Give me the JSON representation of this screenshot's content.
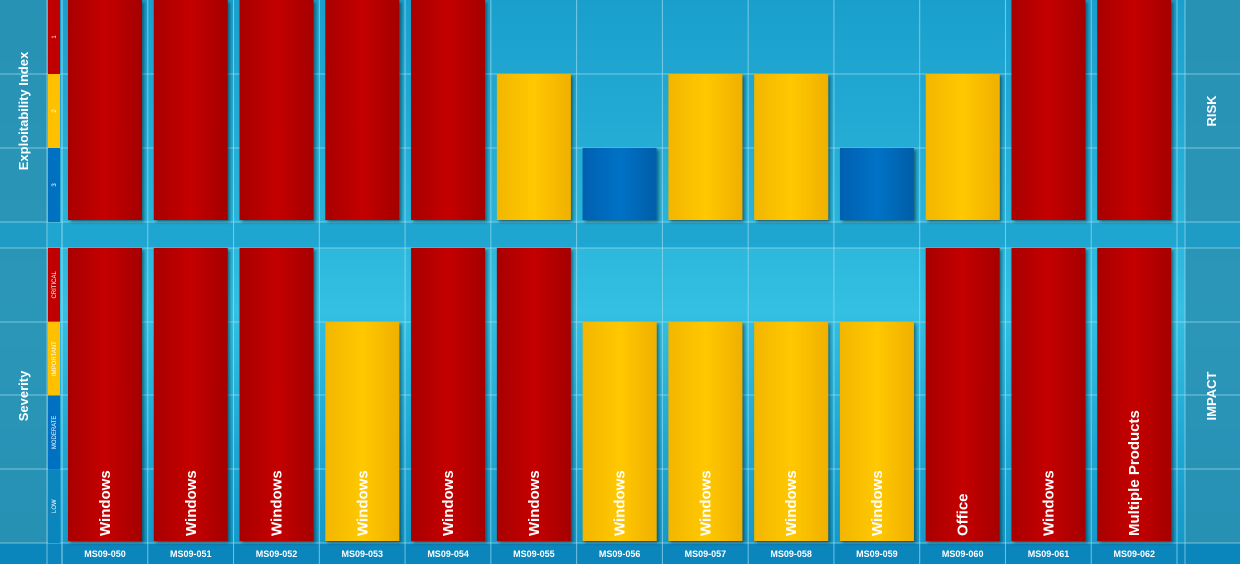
{
  "chart_data": {
    "type": "bar",
    "categories": [
      "MS09-050",
      "MS09-051",
      "MS09-052",
      "MS09-053",
      "MS09-054",
      "MS09-055",
      "MS09-056",
      "MS09-057",
      "MS09-058",
      "MS09-059",
      "MS09-060",
      "MS09-061",
      "MS09-062"
    ],
    "products": [
      "Windows",
      "Windows",
      "Windows",
      "Windows",
      "Windows",
      "Windows",
      "Windows",
      "Windows",
      "Windows",
      "Windows",
      "Office",
      "Windows",
      "Multiple Products"
    ],
    "exploitability": {
      "title": "Exploitability Index",
      "side_label": "RISK",
      "levels": [
        "1",
        "2",
        "3"
      ],
      "values": [
        1,
        1,
        1,
        1,
        1,
        2,
        3,
        2,
        2,
        3,
        2,
        1,
        1
      ]
    },
    "severity": {
      "title": "Severity",
      "side_label": "IMPACT",
      "levels": [
        "CRITICAL",
        "IMPORTANT",
        "MODERATE",
        "LOW"
      ],
      "values": [
        "CRITICAL",
        "CRITICAL",
        "CRITICAL",
        "IMPORTANT",
        "CRITICAL",
        "CRITICAL",
        "IMPORTANT",
        "IMPORTANT",
        "IMPORTANT",
        "IMPORTANT",
        "CRITICAL",
        "CRITICAL",
        "CRITICAL"
      ]
    },
    "colors": {
      "critical_red": "#c00000",
      "important_yellow": "#ffc000",
      "blue": "#0070c0",
      "panel": "#2a8fb0",
      "grid": "#9edcee"
    }
  }
}
